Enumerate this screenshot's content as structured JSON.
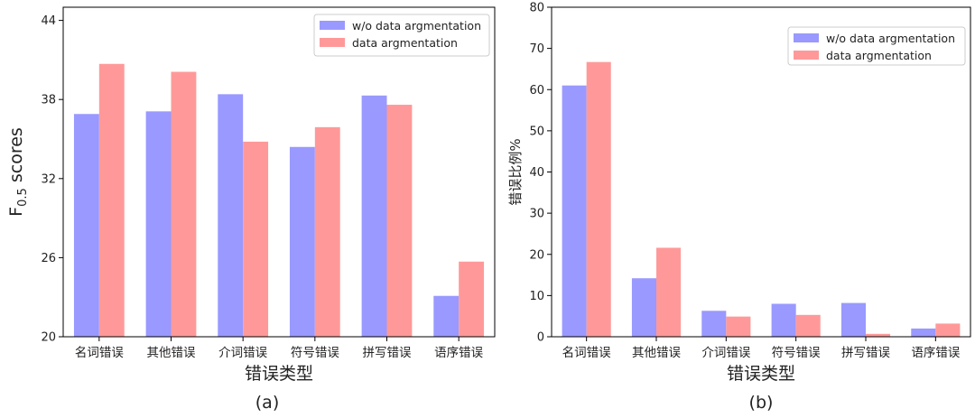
{
  "chart_data": [
    {
      "type": "bar",
      "caption": "(a)",
      "categories": [
        "名词错误",
        "其他错误",
        "介词错误",
        "符号错误",
        "拼写错误",
        "语序错误"
      ],
      "series": [
        {
          "name": "w/o data argmentation",
          "color": "#9999ff",
          "values": [
            36.9,
            37.1,
            38.4,
            34.4,
            38.3,
            23.1
          ]
        },
        {
          "name": "data argmentation",
          "color": "#ff9999",
          "values": [
            40.7,
            40.1,
            34.8,
            35.9,
            37.6,
            25.7
          ]
        }
      ],
      "xlabel": "错误类型",
      "ylabel_main": "F",
      "ylabel_sub": "0.5",
      "ylabel_rest": " scores",
      "ylim": [
        20,
        45
      ],
      "yticks": [
        20,
        26,
        32,
        38,
        44
      ],
      "legend": "top-right",
      "grid": false
    },
    {
      "type": "bar",
      "caption": "(b)",
      "categories": [
        "名词错误",
        "其他错误",
        "介词错误",
        "符号错误",
        "拼写错误",
        "语序错误"
      ],
      "series": [
        {
          "name": "w/o data argmentation",
          "color": "#9999ff",
          "values": [
            61.0,
            14.2,
            6.3,
            8.0,
            8.2,
            2.0
          ]
        },
        {
          "name": "data argmentation",
          "color": "#ff9999",
          "values": [
            66.7,
            21.6,
            4.9,
            5.3,
            0.7,
            3.2
          ]
        }
      ],
      "xlabel": "错误类型",
      "ylabel": "错误比例%",
      "ylim": [
        0,
        80
      ],
      "yticks": [
        0,
        10,
        20,
        30,
        40,
        50,
        60,
        70,
        80
      ],
      "legend": "top-right",
      "grid": false
    }
  ]
}
